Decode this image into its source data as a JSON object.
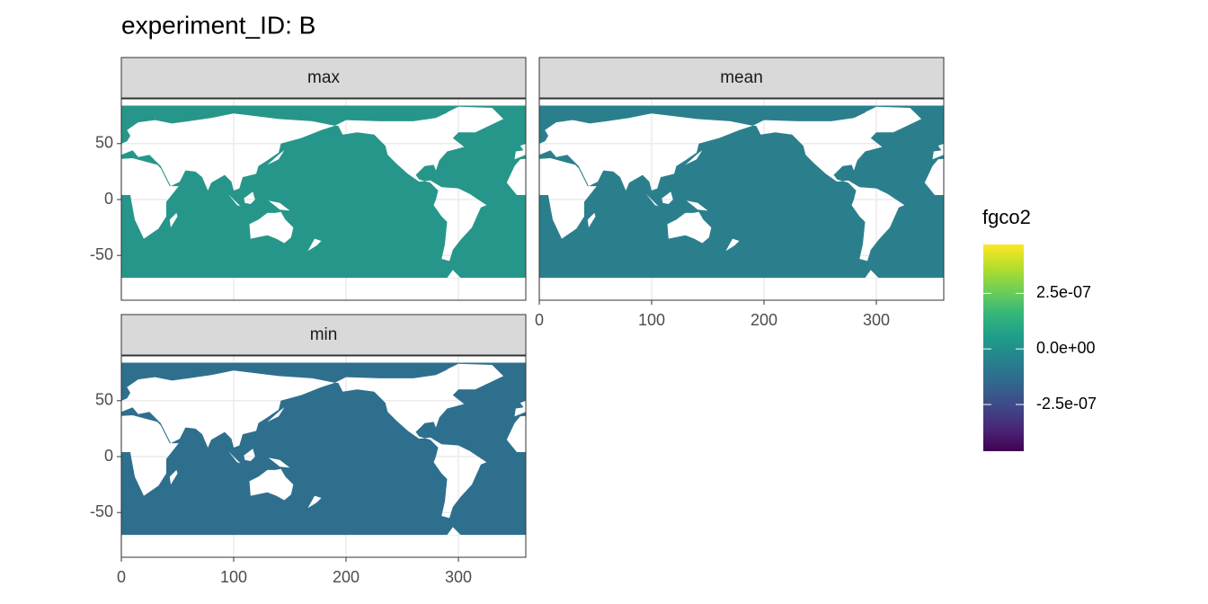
{
  "chart_data": {
    "type": "raster-map",
    "title": "experiment_ID: B",
    "panels": [
      {
        "name": "max",
        "color": "#27968a"
      },
      {
        "name": "mean",
        "color": "#2b7f8d"
      },
      {
        "name": "min",
        "color": "#2e6f8e"
      }
    ],
    "xlim": [
      0,
      360
    ],
    "xticks": [
      0,
      100,
      200,
      300
    ],
    "ylim": [
      -90,
      90
    ],
    "yticks": [
      -50,
      0,
      50
    ],
    "grid": true,
    "legend": {
      "title": "fgco2",
      "limits": [
        -4.6e-07,
        4.7e-07
      ],
      "ticks": [
        {
          "value": 2.5e-07,
          "label": "2.5e-07"
        },
        {
          "value": 0,
          "label": "0.0e+00"
        },
        {
          "value": -2.5e-07,
          "label": "-2.5e-07"
        }
      ],
      "colors": [
        "#440154",
        "#482878",
        "#3e4a89",
        "#31688e",
        "#26828e",
        "#1f9e89",
        "#35b779",
        "#6ece58",
        "#b5de2b",
        "#fde725"
      ]
    }
  }
}
